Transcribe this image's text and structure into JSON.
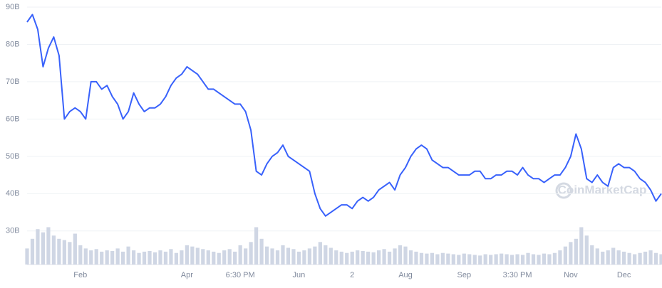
{
  "chart_data": {
    "type": "line",
    "categories": [
      null,
      null,
      null,
      null,
      null,
      null,
      null,
      null,
      null,
      null,
      "Feb",
      null,
      null,
      null,
      null,
      null,
      null,
      null,
      null,
      null,
      null,
      null,
      null,
      null,
      null,
      null,
      null,
      null,
      null,
      null,
      "Apr",
      null,
      null,
      null,
      null,
      null,
      null,
      null,
      null,
      null,
      "6:30 PM",
      null,
      null,
      null,
      null,
      null,
      null,
      null,
      null,
      null,
      null,
      "Jun",
      null,
      null,
      null,
      null,
      null,
      null,
      null,
      null,
      null,
      "2",
      null,
      null,
      null,
      null,
      null,
      null,
      null,
      null,
      null,
      "Aug",
      null,
      null,
      null,
      null,
      null,
      null,
      null,
      null,
      null,
      null,
      "Sep",
      null,
      null,
      null,
      null,
      null,
      null,
      null,
      null,
      null,
      "3:30 PM",
      null,
      null,
      null,
      null,
      null,
      null,
      null,
      null,
      null,
      "Nov",
      null,
      null,
      null,
      null,
      null,
      null,
      null,
      null,
      null,
      "Dec",
      null,
      null,
      null,
      null,
      null,
      null,
      null
    ],
    "series": [
      {
        "color": "#3861fb",
        "values": [
          86,
          88,
          84,
          74,
          79,
          82,
          77,
          60,
          62,
          63,
          62,
          60,
          70,
          70,
          68,
          69,
          66,
          64,
          60,
          62,
          67,
          64,
          62,
          63,
          63,
          64,
          66,
          69,
          71,
          72,
          74,
          73,
          72,
          70,
          68,
          68,
          67,
          66,
          65,
          64,
          64,
          62,
          57,
          46,
          45,
          48,
          50,
          51,
          53,
          50,
          49,
          48,
          47,
          46,
          40,
          36,
          34,
          35,
          36,
          37,
          37,
          36,
          38,
          39,
          38,
          39,
          41,
          42,
          43,
          41,
          45,
          47,
          50,
          52,
          53,
          52,
          49,
          48,
          47,
          47,
          46,
          45,
          45,
          45,
          46,
          46,
          44,
          44,
          45,
          45,
          46,
          46,
          45,
          47,
          45,
          44,
          44,
          43,
          44,
          45,
          45,
          47,
          50,
          56,
          52,
          44,
          43,
          45,
          43,
          42,
          47,
          48,
          47,
          47,
          46,
          44,
          43,
          41,
          38,
          40
        ]
      },
      {
        "color": "#cfd6e4",
        "axis": "y2",
        "values": [
          25,
          40,
          55,
          50,
          58,
          45,
          40,
          38,
          35,
          48,
          30,
          25,
          22,
          24,
          20,
          22,
          21,
          25,
          20,
          28,
          22,
          18,
          20,
          21,
          19,
          22,
          20,
          24,
          18,
          22,
          30,
          28,
          26,
          24,
          22,
          20,
          18,
          22,
          24,
          20,
          30,
          25,
          35,
          58,
          40,
          28,
          25,
          22,
          30,
          26,
          24,
          20,
          22,
          25,
          28,
          35,
          30,
          26,
          22,
          20,
          18,
          20,
          22,
          21,
          20,
          19,
          22,
          24,
          20,
          25,
          30,
          28,
          22,
          20,
          18,
          17,
          18,
          16,
          18,
          17,
          16,
          15,
          17,
          16,
          15,
          14,
          16,
          15,
          16,
          17,
          16,
          15,
          16,
          15,
          18,
          16,
          15,
          17,
          16,
          18,
          22,
          28,
          35,
          40,
          58,
          45,
          30,
          25,
          20,
          22,
          26,
          22,
          20,
          18,
          16,
          18,
          20,
          22,
          18,
          16
        ]
      }
    ],
    "ylim": [
      21,
      90
    ],
    "yticks": [
      {
        "value": 30,
        "label": "30B"
      },
      {
        "value": 40,
        "label": "40B"
      },
      {
        "value": 50,
        "label": "50B"
      },
      {
        "value": 60,
        "label": "60B"
      },
      {
        "value": 70,
        "label": "70B"
      },
      {
        "value": 80,
        "label": "80B"
      },
      {
        "value": 90,
        "label": "90B"
      }
    ],
    "y2lim": [
      0,
      400
    ],
    "grid": true,
    "watermark": "CoinMarketCap"
  }
}
